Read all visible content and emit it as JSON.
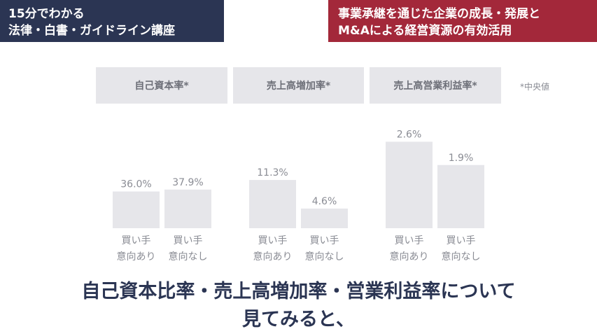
{
  "banners": {
    "left": [
      "15分でわかる",
      "法律・白書・ガイドライン講座"
    ],
    "right": [
      "事業承継を通じた企業の成長・発展と",
      "M&Aによる経営資源の有効活用"
    ]
  },
  "note": "*中央値",
  "headline": [
    "自己資本比率・売上高増加率・営業利益率について",
    "見てみると、"
  ],
  "colors": {
    "navy": "#2b3553",
    "crimson": "#a3283a",
    "chip_bg": "#e6e6ea",
    "bar": "#e6e6ea",
    "label": "#8a8c94"
  },
  "chart_data": [
    {
      "type": "bar",
      "title": "自己資本率*",
      "categories": [
        "買い手\n意向あり",
        "買い手\n意向なし"
      ],
      "values": [
        36.0,
        37.9
      ],
      "data_labels": [
        "36.0%",
        "37.9%"
      ]
    },
    {
      "type": "bar",
      "title": "売上高増加率*",
      "categories": [
        "買い手\n意向あり",
        "買い手\n意向なし"
      ],
      "values": [
        11.3,
        4.6
      ],
      "data_labels": [
        "11.3%",
        "4.6%"
      ]
    },
    {
      "type": "bar",
      "title": "売上高営業利益率*",
      "categories": [
        "買い手\n意向あり",
        "買い手\n意向なし"
      ],
      "values": [
        2.6,
        1.9
      ],
      "data_labels": [
        "2.6%",
        "1.9%"
      ]
    }
  ]
}
